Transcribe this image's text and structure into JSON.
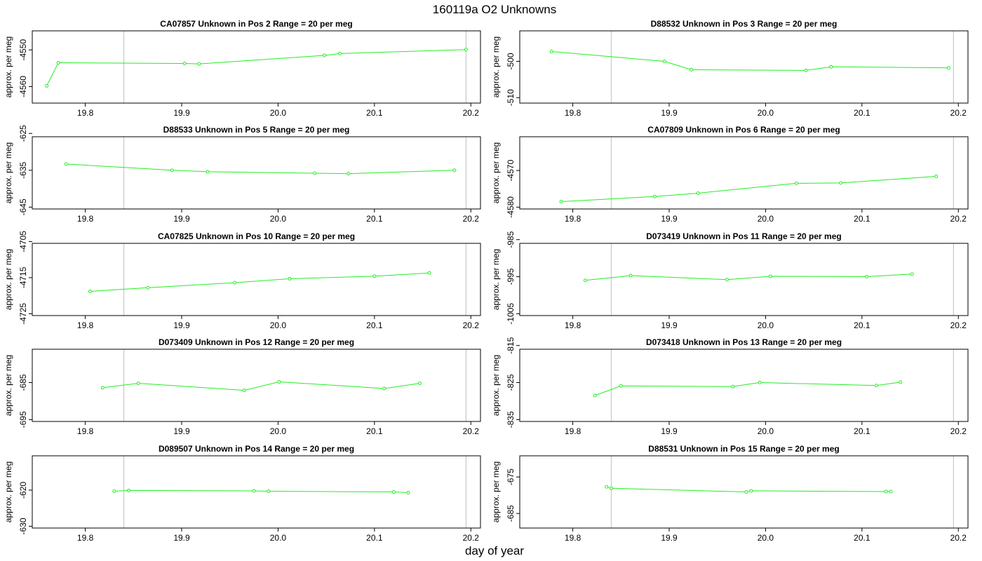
{
  "figure": {
    "title": "160119a  O2 Unknowns",
    "xlabel": "day of year"
  },
  "chart_data": [
    {
      "type": "line",
      "title": "CA07857    Unknown in Pos 2         Range = 20 per meg",
      "ylabel": "approx. per meg",
      "xlim": [
        19.745,
        20.21
      ],
      "ylim": [
        -4564.5,
        -4544.8
      ],
      "xticks": [
        "19.8",
        "19.9",
        "20.0",
        "20.1",
        "20.2"
      ],
      "yticks": [
        "-4560",
        "-4550"
      ],
      "vlines": [
        19.84,
        20.195
      ],
      "color": "#22ee22",
      "x": [
        19.76,
        19.772,
        19.903,
        19.918,
        20.048,
        20.064,
        20.195
      ],
      "y": [
        -4559.8,
        -4553.5,
        -4553.7,
        -4553.8,
        -4551.5,
        -4551.0,
        -4549.9
      ]
    },
    {
      "type": "line",
      "title": "D88532    Unknown in Pos 3         Range = 20 per meg",
      "ylabel": "approx. per meg",
      "xlim": [
        19.745,
        20.21
      ],
      "ylim": [
        -511.5,
        -491.6
      ],
      "xticks": [
        "19.8",
        "19.9",
        "20.0",
        "20.1",
        "20.2"
      ],
      "yticks": [
        "-510",
        "-500"
      ],
      "vlines": [
        19.84,
        20.195
      ],
      "color": "#22ee22",
      "x": [
        19.778,
        19.895,
        19.923,
        20.042,
        20.068,
        20.19
      ],
      "y": [
        -497.3,
        -500.0,
        -502.3,
        -502.5,
        -501.5,
        -501.8
      ]
    },
    {
      "type": "line",
      "title": "D88533    Unknown in Pos 5         Range = 20 per meg",
      "ylabel": "approx. per meg",
      "xlim": [
        19.745,
        20.21
      ],
      "ylim": [
        -645.5,
        -625.9
      ],
      "xticks": [
        "19.8",
        "19.9",
        "20.0",
        "20.1",
        "20.2"
      ],
      "yticks": [
        "-645",
        "-635",
        "-625"
      ],
      "vlines": [
        19.84,
        20.195
      ],
      "color": "#22ee22",
      "x": [
        19.78,
        19.89,
        19.927,
        20.038,
        20.073,
        20.183
      ],
      "y": [
        -633.3,
        -635.0,
        -635.4,
        -635.8,
        -635.9,
        -635.0
      ]
    },
    {
      "type": "line",
      "title": "CA07809    Unknown in Pos 6         Range = 20 per meg",
      "ylabel": "approx. per meg",
      "xlim": [
        19.745,
        20.21
      ],
      "ylim": [
        -4580.5,
        -4560.8
      ],
      "xticks": [
        "19.8",
        "19.9",
        "20.0",
        "20.1",
        "20.2"
      ],
      "yticks": [
        "-4580",
        "-4570"
      ],
      "vlines": [
        19.84,
        20.195
      ],
      "color": "#22ee22",
      "x": [
        19.788,
        19.885,
        19.93,
        20.032,
        20.078,
        20.177
      ],
      "y": [
        -4578.5,
        -4577.1,
        -4576.2,
        -4573.5,
        -4573.4,
        -4571.6
      ]
    },
    {
      "type": "line",
      "title": "CA07825    Unknown in Pos 10         Range = 20 per meg",
      "ylabel": "approx. per meg",
      "xlim": [
        19.745,
        20.21
      ],
      "ylim": [
        -4725.5,
        -4705.5
      ],
      "xticks": [
        "19.8",
        "19.9",
        "20.0",
        "20.1",
        "20.2"
      ],
      "yticks": [
        "-4725",
        "-4715",
        "-4705"
      ],
      "vlines": [
        19.84,
        20.195
      ],
      "color": "#22ee22",
      "x": [
        19.805,
        19.865,
        19.955,
        20.012,
        20.1,
        20.157
      ],
      "y": [
        -4718.8,
        -4717.8,
        -4716.4,
        -4715.3,
        -4714.6,
        -4713.7
      ]
    },
    {
      "type": "line",
      "title": "D073419    Unknown in Pos 11         Range = 20 per meg",
      "ylabel": "approx. per meg",
      "xlim": [
        19.745,
        20.21
      ],
      "ylim": [
        -1005.5,
        -986.0
      ],
      "xticks": [
        "19.8",
        "19.9",
        "20.0",
        "20.1",
        "20.2"
      ],
      "yticks": [
        "-1005",
        "-995",
        "-985"
      ],
      "vlines": [
        19.84,
        20.195
      ],
      "color": "#22ee22",
      "x": [
        19.813,
        19.86,
        19.96,
        20.005,
        20.105,
        20.152
      ],
      "y": [
        -996.0,
        -994.7,
        -995.8,
        -994.9,
        -995.0,
        -994.3
      ]
    },
    {
      "type": "line",
      "title": "D073409    Unknown in Pos 12         Range = 20 per meg",
      "ylabel": "approx. per meg",
      "xlim": [
        19.745,
        20.21
      ],
      "ylim": [
        -695.5,
        -676.0
      ],
      "xticks": [
        "19.8",
        "19.9",
        "20.0",
        "20.1",
        "20.2"
      ],
      "yticks": [
        "-695",
        "-685"
      ],
      "vlines": [
        19.84,
        20.195
      ],
      "color": "#22ee22",
      "x": [
        19.818,
        19.855,
        19.965,
        20.001,
        20.11,
        20.147
      ],
      "y": [
        -686.4,
        -685.2,
        -687.1,
        -684.8,
        -686.6,
        -685.2
      ]
    },
    {
      "type": "line",
      "title": "D073418    Unknown in Pos 13         Range = 20 per meg",
      "ylabel": "approx. per meg",
      "xlim": [
        19.745,
        20.21
      ],
      "ylim": [
        -835.5,
        -816.0
      ],
      "xticks": [
        "19.8",
        "19.9",
        "20.0",
        "20.1",
        "20.2"
      ],
      "yticks": [
        "-835",
        "-825",
        "-815"
      ],
      "vlines": [
        19.84,
        20.195
      ],
      "color": "#22ee22",
      "x": [
        19.823,
        19.85,
        19.966,
        19.994,
        20.115,
        20.14
      ],
      "y": [
        -828.5,
        -825.9,
        -826.1,
        -825.0,
        -825.8,
        -824.9
      ]
    },
    {
      "type": "line",
      "title": "D089507    Unknown in Pos 14         Range = 20 per meg",
      "ylabel": "approx. per meg",
      "xlim": [
        19.745,
        20.21
      ],
      "ylim": [
        -630.5,
        -610.5
      ],
      "xticks": [
        "19.8",
        "19.9",
        "20.0",
        "20.1",
        "20.2"
      ],
      "yticks": [
        "-630",
        "-620"
      ],
      "vlines": [
        19.84,
        20.195
      ],
      "color": "#22ee22",
      "x": [
        19.83,
        19.845,
        19.975,
        19.99,
        20.12,
        20.135
      ],
      "y": [
        -620.3,
        -620.1,
        -620.2,
        -620.3,
        -620.5,
        -620.7
      ]
    },
    {
      "type": "line",
      "title": "D88531    Unknown in Pos 15         Range = 20 per meg",
      "ylabel": "approx. per meg",
      "xlim": [
        19.745,
        20.21
      ],
      "ylim": [
        -689.0,
        -669.2
      ],
      "xticks": [
        "19.8",
        "19.9",
        "20.0",
        "20.1",
        "20.2"
      ],
      "yticks": [
        "-685",
        "-675"
      ],
      "vlines": [
        19.84,
        20.195
      ],
      "color": "#22ee22",
      "x": [
        19.835,
        19.84,
        19.98,
        19.985,
        20.125,
        20.13
      ],
      "y": [
        -677.7,
        -678.1,
        -679.1,
        -678.8,
        -679.0,
        -679.0
      ]
    }
  ]
}
